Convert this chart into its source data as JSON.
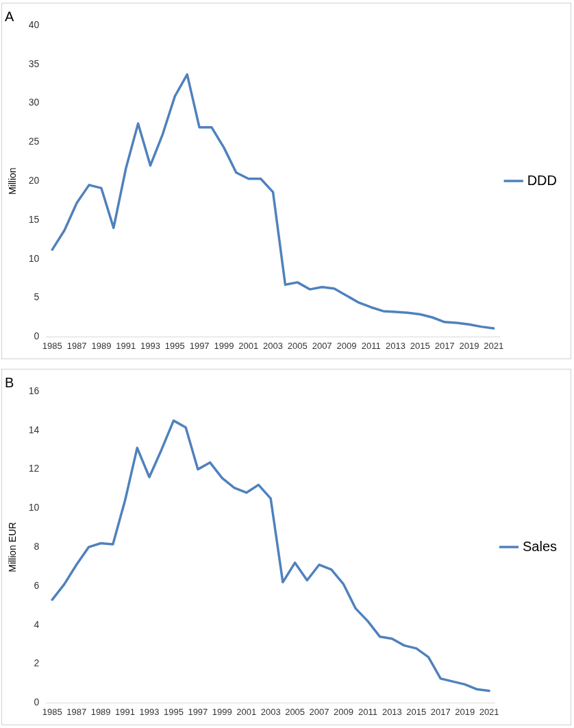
{
  "chart_data": [
    {
      "type": "line",
      "title": "A",
      "ylabel": "Million",
      "categories": [
        "1985",
        null,
        "1987",
        null,
        "1989",
        null,
        "1991",
        null,
        "1993",
        null,
        "1995",
        null,
        "1997",
        null,
        "1999",
        null,
        "2001",
        null,
        "2003",
        null,
        "2005",
        null,
        "2007",
        null,
        "2009",
        null,
        "2011",
        null,
        "2013",
        null,
        "2015",
        null,
        "2017",
        null,
        "2019",
        null,
        "2021"
      ],
      "series": [
        {
          "name": "DDD",
          "color": "#4f81bd",
          "values": [
            11.2,
            13.7,
            17.2,
            19.5,
            19.1,
            14.0,
            21.6,
            27.4,
            22.0,
            26.0,
            30.9,
            33.7,
            26.9,
            26.9,
            24.3,
            21.1,
            20.3,
            20.3,
            18.6,
            6.7,
            7.0,
            6.1,
            6.4,
            6.2,
            5.3,
            4.4,
            3.8,
            3.3,
            3.2,
            3.1,
            2.9,
            2.5,
            1.9,
            1.8,
            1.6,
            1.3,
            1.1
          ]
        }
      ],
      "ylim": [
        0,
        40
      ],
      "yticks": [
        0,
        5,
        10,
        15,
        20,
        25,
        30,
        35,
        40
      ],
      "grid": false,
      "legend": "right",
      "marker": "none",
      "line_style": "solid"
    },
    {
      "type": "line",
      "title": "B",
      "ylabel": "Million EUR",
      "categories": [
        "1985",
        null,
        "1987",
        null,
        "1989",
        null,
        "1991",
        null,
        "1993",
        null,
        "1995",
        null,
        "1997",
        null,
        "1999",
        null,
        "2001",
        null,
        "2003",
        null,
        "2005",
        null,
        "2007",
        null,
        "2009",
        null,
        "2011",
        null,
        "2013",
        null,
        "2015",
        null,
        "2017",
        null,
        "2019",
        null,
        "2021"
      ],
      "series": [
        {
          "name": "Sales",
          "color": "#4f81bd",
          "values": [
            5.3,
            6.1,
            7.1,
            8.0,
            8.2,
            8.15,
            10.4,
            13.1,
            11.6,
            13.0,
            14.5,
            14.15,
            12.0,
            12.35,
            11.55,
            11.05,
            10.8,
            11.2,
            10.5,
            6.2,
            7.2,
            6.3,
            7.1,
            6.85,
            6.1,
            4.85,
            4.2,
            3.4,
            3.3,
            2.95,
            2.8,
            2.35,
            1.25,
            1.1,
            0.95,
            0.7,
            0.62
          ]
        }
      ],
      "ylim": [
        0,
        16
      ],
      "yticks": [
        0,
        2,
        4,
        6,
        8,
        10,
        12,
        14,
        16
      ],
      "grid": false,
      "legend": "right",
      "marker": "none",
      "line_style": "solid"
    }
  ]
}
